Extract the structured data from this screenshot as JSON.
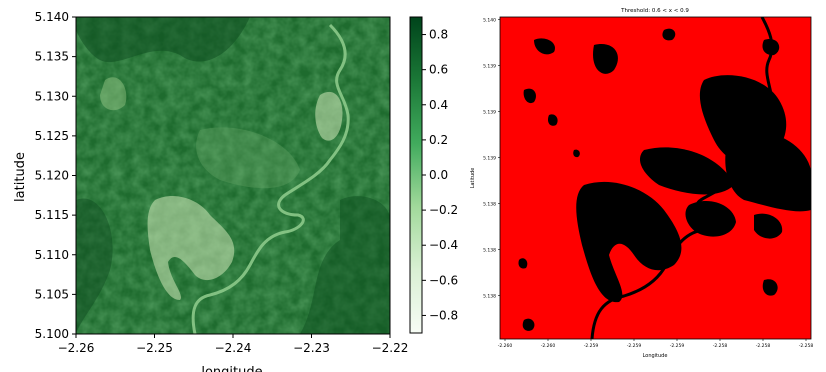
{
  "chart_data": [
    {
      "type": "heatmap",
      "title": "",
      "xlabel": "longitude",
      "ylabel": "latitude",
      "xlim": [
        -2.26,
        -2.22
      ],
      "ylim": [
        5.1,
        5.14
      ],
      "xticks": [
        "−2.26",
        "−2.25",
        "−2.24",
        "−2.23",
        "−2.22"
      ],
      "yticks": [
        "5.100",
        "5.105",
        "5.110",
        "5.115",
        "5.120",
        "5.125",
        "5.130",
        "5.135",
        "5.140"
      ],
      "colorbar": {
        "cmap": "Greens",
        "range": [
          -0.9,
          0.9
        ],
        "ticks": [
          "0.8",
          "0.6",
          "0.4",
          "0.2",
          "0.0",
          "−0.2",
          "−0.4",
          "−0.6",
          "−0.8"
        ]
      },
      "colors": {
        "dense": "#0b4a1d",
        "mid": "#2d7f3a",
        "light": "#cfe8b8",
        "river": "#7fbf80"
      }
    },
    {
      "type": "heatmap",
      "title": "Threshold: 0.6 < x < 0.9",
      "xlabel": "Longitude",
      "ylabel": "Latitude",
      "xticks": [
        "-2.260",
        "-2.260",
        "-2.259",
        "-2.259",
        "-2.259",
        "-2.258",
        "-2.258",
        "-2.258"
      ],
      "yticks": [
        "5.140",
        "5.139",
        "5.139",
        "5.139",
        "5.138",
        "5.138",
        "5.138"
      ],
      "colors": {
        "above_threshold": "#ff0000",
        "below_threshold": "#000000"
      }
    }
  ]
}
